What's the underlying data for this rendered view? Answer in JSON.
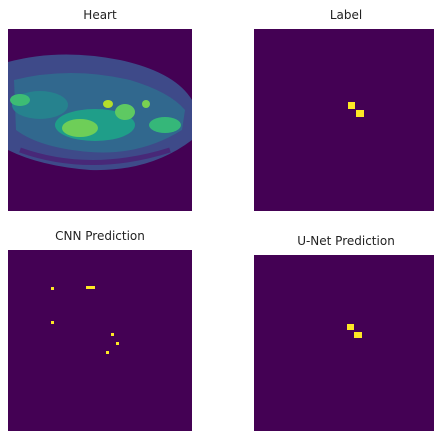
{
  "panels": [
    {
      "title": "Heart"
    },
    {
      "title": "Label"
    },
    {
      "title": "CNN Prediction"
    },
    {
      "title": "U-Net Prediction"
    }
  ]
}
